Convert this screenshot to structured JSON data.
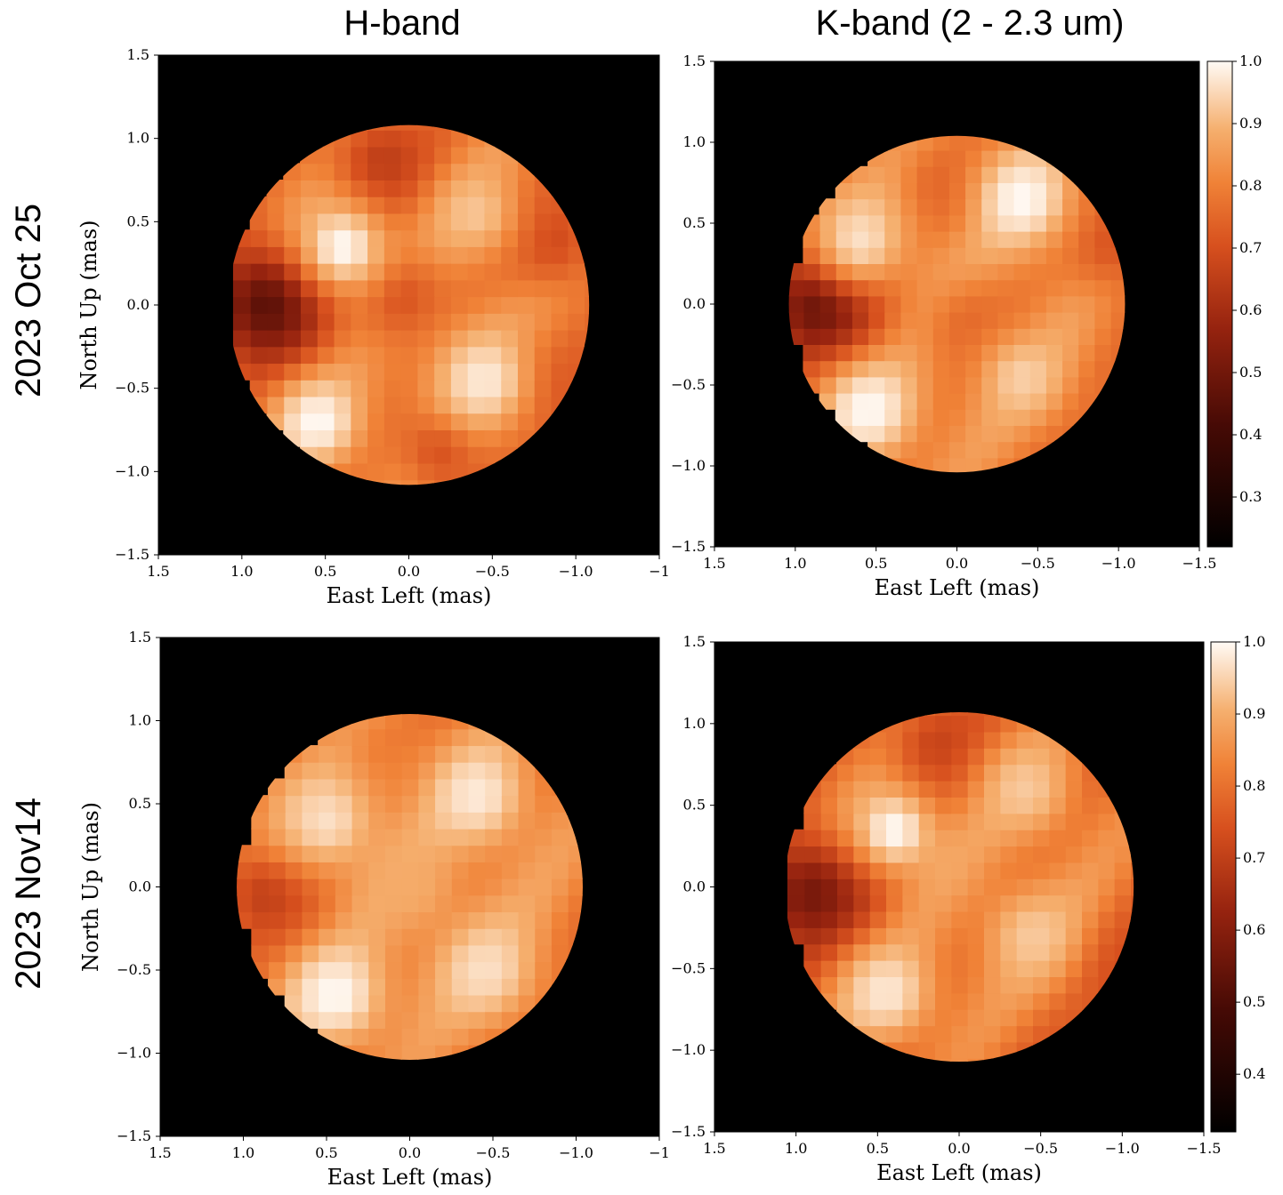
{
  "column_titles": [
    "H-band",
    "K-band (2 - 2.3 um)"
  ],
  "row_labels": [
    "2023 Oct 25",
    "2023 Nov14"
  ],
  "chart_data": [
    {
      "type": "heatmap",
      "panel": "2023 Oct 25 / H-band",
      "xlabel": "East Left (mas)",
      "ylabel": "North Up (mas)",
      "xlim": [
        1.5,
        -1.5
      ],
      "ylim": [
        -1.5,
        1.5
      ],
      "xticks": [
        "1.5",
        "1.0",
        "0.5",
        "0.0",
        "−0.5",
        "−1.0",
        "−1"
      ],
      "yticks": [
        "−1.5",
        "−1.0",
        "−0.5",
        "0.0",
        "0.5",
        "1.0",
        "1.5"
      ],
      "disk_radius_mas": 1.08,
      "spots": [
        {
          "x": 0.95,
          "y": 0.0,
          "r": 0.35,
          "v": 0.3
        },
        {
          "x": 0.25,
          "y": 0.85,
          "r": 0.3,
          "v": 0.55
        },
        {
          "x": -0.1,
          "y": -0.85,
          "r": 0.25,
          "v": 0.6
        },
        {
          "x": -0.75,
          "y": 0.4,
          "r": 0.3,
          "v": 0.6
        },
        {
          "x": -0.7,
          "y": -0.5,
          "r": 0.3,
          "v": 0.6
        },
        {
          "x": 0.15,
          "y": 0.05,
          "r": 0.3,
          "v": 0.62
        },
        {
          "x": 0.5,
          "y": 0.35,
          "r": 0.25,
          "v": 1.0
        },
        {
          "x": -0.35,
          "y": -0.45,
          "r": 0.3,
          "v": 0.97
        },
        {
          "x": 0.65,
          "y": -0.7,
          "r": 0.25,
          "v": 1.0
        },
        {
          "x": -0.3,
          "y": 0.55,
          "r": 0.25,
          "v": 0.9
        }
      ]
    },
    {
      "type": "heatmap",
      "panel": "2023 Oct 25 / K-band (2 - 2.3 um)",
      "xlabel": "East Left (mas)",
      "ylabel": "",
      "xlim": [
        1.5,
        -1.5
      ],
      "ylim": [
        -1.5,
        1.5
      ],
      "xticks": [
        "1.5",
        "1.0",
        "0.5",
        "0.0",
        "−0.5",
        "−1.0",
        "−1.5"
      ],
      "yticks": [
        "−1.5",
        "−1.0",
        "−0.5",
        "0.0",
        "0.5",
        "1.0",
        "1.5"
      ],
      "disk_radius_mas": 1.04,
      "colorbar": {
        "min": 0.22,
        "max": 1.0,
        "ticks": [
          "1.0",
          "0.9",
          "0.8",
          "0.7",
          "0.6",
          "0.5",
          "0.4",
          "0.3"
        ]
      },
      "spots": [
        {
          "x": 0.95,
          "y": 0.0,
          "r": 0.35,
          "v": 0.3
        },
        {
          "x": 0.15,
          "y": 0.7,
          "r": 0.25,
          "v": 0.65
        },
        {
          "x": -0.85,
          "y": 0.4,
          "r": 0.3,
          "v": 0.62
        },
        {
          "x": 0.0,
          "y": -0.15,
          "r": 0.3,
          "v": 0.68
        },
        {
          "x": -0.3,
          "y": 0.65,
          "r": 0.3,
          "v": 1.0
        },
        {
          "x": 0.7,
          "y": 0.4,
          "r": 0.3,
          "v": 0.95
        },
        {
          "x": 0.65,
          "y": -0.65,
          "r": 0.3,
          "v": 1.0
        },
        {
          "x": -0.3,
          "y": -0.45,
          "r": 0.25,
          "v": 0.92
        }
      ]
    },
    {
      "type": "heatmap",
      "panel": "2023 Nov14 / H-band",
      "xlabel": "East Left (mas)",
      "ylabel": "North Up (mas)",
      "xlim": [
        1.5,
        -1.5
      ],
      "ylim": [
        -1.5,
        1.5
      ],
      "xticks": [
        "1.5",
        "1.0",
        "0.5",
        "0.0",
        "−0.5",
        "−1.0",
        "−1"
      ],
      "yticks": [
        "−1.5",
        "−1.0",
        "−0.5",
        "0.0",
        "0.5",
        "1.0",
        "1.5"
      ],
      "disk_radius_mas": 1.04,
      "spots": [
        {
          "x": 0.95,
          "y": -0.05,
          "r": 0.3,
          "v": 0.55
        },
        {
          "x": 0.2,
          "y": 0.75,
          "r": 0.25,
          "v": 0.72
        },
        {
          "x": 0.55,
          "y": -0.65,
          "r": 0.3,
          "v": 1.0
        },
        {
          "x": -0.3,
          "y": 0.55,
          "r": 0.3,
          "v": 0.97
        },
        {
          "x": 0.6,
          "y": 0.4,
          "r": 0.3,
          "v": 0.95
        },
        {
          "x": -0.35,
          "y": -0.5,
          "r": 0.3,
          "v": 0.95
        },
        {
          "x": 0.1,
          "y": 0.0,
          "r": 0.25,
          "v": 0.85
        }
      ]
    },
    {
      "type": "heatmap",
      "panel": "2023 Nov14 / K-band (2 - 2.3 um)",
      "xlabel": "East Left (mas)",
      "ylabel": "",
      "xlim": [
        1.5,
        -1.5
      ],
      "ylim": [
        -1.5,
        1.5
      ],
      "xticks": [
        "1.5",
        "1.0",
        "0.5",
        "0.0",
        "−0.5",
        "−1.0",
        "−1.5"
      ],
      "yticks": [
        "−1.5",
        "−1.0",
        "−0.5",
        "0.0",
        "0.5",
        "1.0",
        "1.5"
      ],
      "disk_radius_mas": 1.07,
      "colorbar": {
        "min": 0.32,
        "max": 1.0,
        "ticks": [
          "1.0",
          "0.9",
          "0.8",
          "0.7",
          "0.6",
          "0.5",
          "0.4"
        ]
      },
      "spots": [
        {
          "x": 1.0,
          "y": -0.05,
          "r": 0.35,
          "v": 0.45
        },
        {
          "x": 0.2,
          "y": 0.85,
          "r": 0.3,
          "v": 0.62
        },
        {
          "x": -0.85,
          "y": -0.5,
          "r": 0.25,
          "v": 0.65
        },
        {
          "x": 0.5,
          "y": 0.35,
          "r": 0.25,
          "v": 1.0
        },
        {
          "x": -0.3,
          "y": 0.6,
          "r": 0.3,
          "v": 0.92
        },
        {
          "x": 0.55,
          "y": -0.65,
          "r": 0.3,
          "v": 0.97
        },
        {
          "x": -0.35,
          "y": -0.3,
          "r": 0.3,
          "v": 0.92
        }
      ]
    }
  ]
}
